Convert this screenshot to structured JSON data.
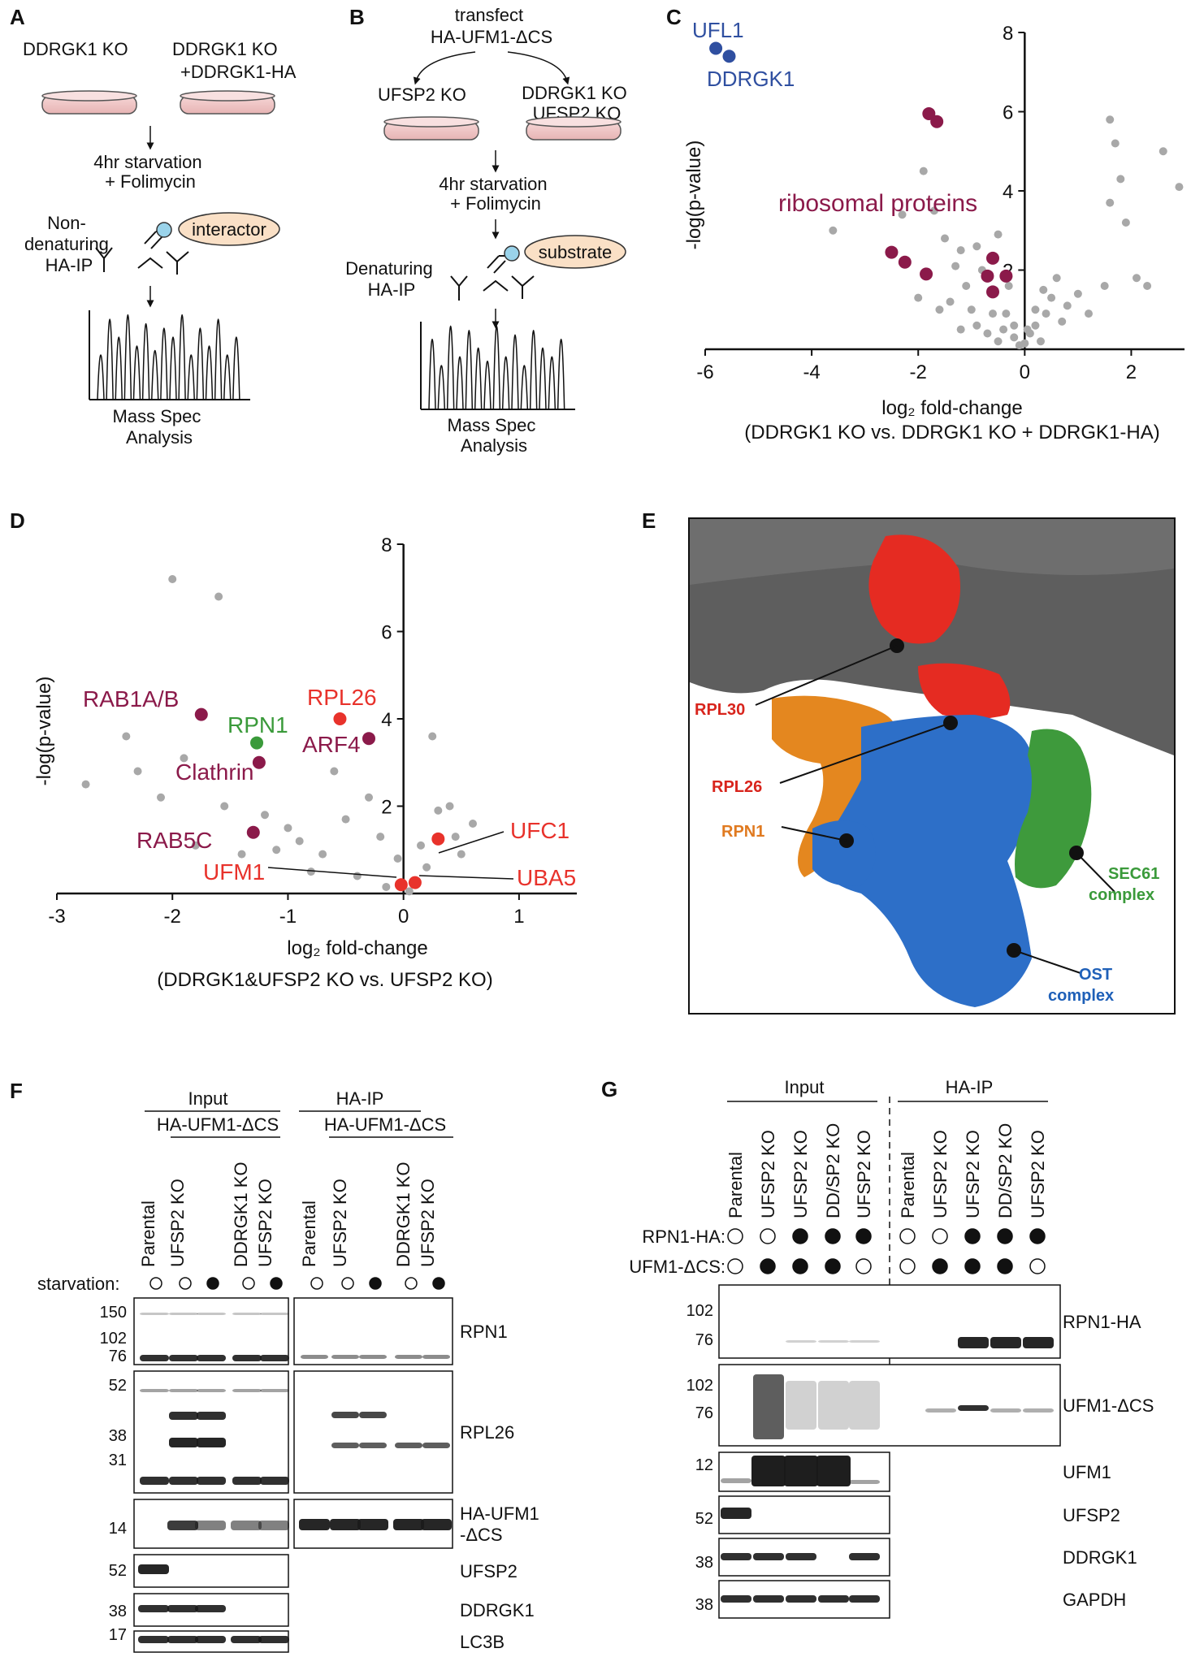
{
  "panels": {
    "A": "A",
    "B": "B",
    "C": "C",
    "D": "D",
    "E": "E",
    "F": "F",
    "G": "G"
  },
  "panelA": {
    "left_label": "DDRGK1 KO",
    "right_label": "DDRGK1 KO\n+DDRGK1-HA",
    "step1": "4hr starvation\n+ Folimycin",
    "ip_label": "Non-\ndenaturing\nHA-IP",
    "bubble": "interactor",
    "ms": "Mass Spec\nAnalysis"
  },
  "panelB": {
    "top": "transfect\nHA-UFM1-ΔCS",
    "left_label": "UFSP2 KO",
    "right_label": "DDRGK1 KO\nUFSP2 KO",
    "step1": "4hr starvation\n+ Folimycin",
    "ip_label": "Denaturing\nHA-IP",
    "bubble": "substrate",
    "ms": "Mass Spec\nAnalysis"
  },
  "chart_data": [
    {
      "type": "scatter",
      "panel": "C",
      "xlabel": "log₂ fold-change",
      "xlabel_sub": "(DDRGK1 KO vs. DDRGK1 KO + DDRGK1-HA)",
      "ylabel": "-log(p-value)",
      "xlim": [
        -6,
        3
      ],
      "ylim": [
        0,
        8
      ],
      "xticks": [
        "-6",
        "-4",
        "-2",
        "0",
        "2"
      ],
      "yticks": [
        "2",
        "4",
        "6",
        "8"
      ],
      "annotations": {
        "ufl1": "UFL1",
        "ddrgk1": "DDRGK1",
        "ribo": "ribosomal proteins"
      },
      "highlight_blue": [
        [
          -5.8,
          7.6
        ],
        [
          -5.55,
          7.4
        ]
      ],
      "highlight_ribo": [
        [
          -1.8,
          5.95
        ],
        [
          -1.65,
          5.75
        ],
        [
          -2.5,
          2.45
        ],
        [
          -2.25,
          2.2
        ],
        [
          -1.85,
          1.9
        ],
        [
          -0.6,
          2.3
        ],
        [
          -0.7,
          1.85
        ],
        [
          -0.6,
          1.45
        ],
        [
          -0.35,
          1.85
        ]
      ],
      "background": [
        [
          -3.6,
          3.0
        ],
        [
          -2.3,
          3.4
        ],
        [
          -1.9,
          4.5
        ],
        [
          -1.7,
          3.5
        ],
        [
          -1.5,
          2.8
        ],
        [
          -1.3,
          2.1
        ],
        [
          -1.1,
          1.6
        ],
        [
          -1.2,
          2.5
        ],
        [
          -0.9,
          2.6
        ],
        [
          -0.8,
          2.0
        ],
        [
          -0.5,
          2.9
        ],
        [
          -0.3,
          1.6
        ],
        [
          -1.4,
          1.2
        ],
        [
          -1.6,
          1.0
        ],
        [
          -2.0,
          1.3
        ],
        [
          -1.0,
          1.0
        ],
        [
          -0.9,
          0.6
        ],
        [
          -0.6,
          0.9
        ],
        [
          -0.4,
          0.5
        ],
        [
          -0.2,
          0.3
        ],
        [
          -0.1,
          0.1
        ],
        [
          0.0,
          0.15
        ],
        [
          0.1,
          0.4
        ],
        [
          0.2,
          0.6
        ],
        [
          0.3,
          0.2
        ],
        [
          0.4,
          0.9
        ],
        [
          0.5,
          1.3
        ],
        [
          0.6,
          1.8
        ],
        [
          0.7,
          0.7
        ],
        [
          0.8,
          1.1
        ],
        [
          1.0,
          1.4
        ],
        [
          1.2,
          0.9
        ],
        [
          1.5,
          1.6
        ],
        [
          1.6,
          3.7
        ],
        [
          1.7,
          5.2
        ],
        [
          1.8,
          4.3
        ],
        [
          1.9,
          3.2
        ],
        [
          2.1,
          1.8
        ],
        [
          2.3,
          1.6
        ],
        [
          2.6,
          5.0
        ],
        [
          2.9,
          4.1
        ],
        [
          1.6,
          5.8
        ],
        [
          -0.2,
          0.6
        ],
        [
          -0.5,
          0.2
        ],
        [
          -0.7,
          0.4
        ],
        [
          0.2,
          1.0
        ],
        [
          0.35,
          1.5
        ],
        [
          -1.2,
          0.5
        ],
        [
          -0.35,
          0.9
        ],
        [
          0.05,
          0.5
        ]
      ]
    },
    {
      "type": "scatter",
      "panel": "D",
      "xlabel": "log₂ fold-change",
      "xlabel_sub": "(DDRGK1&UFSP2 KO vs. UFSP2 KO)",
      "ylabel": "-log(p-value)",
      "xlim": [
        -3,
        1.5
      ],
      "ylim": [
        0,
        8
      ],
      "xticks": [
        "-3",
        "-2",
        "-1",
        "0",
        "1"
      ],
      "yticks": [
        "2",
        "4",
        "6",
        "8"
      ],
      "labels": {
        "rab1": "RAB1A/B",
        "rpn1": "RPN1",
        "clathrin": "Clathrin",
        "rpl26": "RPL26",
        "arf4": "ARF4",
        "rab5c": "RAB5C",
        "ufm1": "UFM1",
        "ufc1": "UFC1",
        "uba5": "UBA5"
      },
      "purple_points": [
        [
          -1.75,
          4.1
        ],
        [
          -1.25,
          3.0
        ],
        [
          -0.3,
          3.55
        ],
        [
          -1.3,
          1.4
        ]
      ],
      "green_points": [
        [
          -1.27,
          3.45
        ]
      ],
      "red_points": [
        [
          -0.55,
          4.0
        ],
        [
          -0.02,
          0.2
        ],
        [
          0.1,
          0.25
        ],
        [
          0.3,
          1.25
        ]
      ],
      "background": [
        [
          -2.0,
          7.2
        ],
        [
          -1.6,
          6.8
        ],
        [
          -2.75,
          2.5
        ],
        [
          -2.3,
          2.8
        ],
        [
          -2.4,
          3.6
        ],
        [
          -2.1,
          2.2
        ],
        [
          -1.9,
          3.1
        ],
        [
          -1.55,
          2.0
        ],
        [
          -1.2,
          1.8
        ],
        [
          -1.0,
          1.5
        ],
        [
          -0.9,
          1.2
        ],
        [
          -0.7,
          0.9
        ],
        [
          -0.5,
          1.7
        ],
        [
          -0.3,
          2.2
        ],
        [
          -0.2,
          1.3
        ],
        [
          -0.6,
          2.8
        ],
        [
          0.25,
          3.6
        ],
        [
          0.4,
          2.0
        ],
        [
          0.5,
          0.9
        ],
        [
          0.6,
          1.6
        ],
        [
          0.2,
          0.6
        ],
        [
          -0.4,
          0.4
        ],
        [
          -0.15,
          0.15
        ],
        [
          0.05,
          0.05
        ],
        [
          -1.4,
          0.9
        ],
        [
          -1.8,
          1.1
        ],
        [
          -0.8,
          0.5
        ],
        [
          0.3,
          1.9
        ],
        [
          0.15,
          1.1
        ],
        [
          -0.05,
          0.8
        ],
        [
          -1.1,
          1.0
        ],
        [
          0.45,
          1.3
        ]
      ]
    }
  ],
  "panelE": {
    "rpl30": "RPL30",
    "rpl26": "RPL26",
    "rpn1": "RPN1",
    "sec61": "SEC61\ncomplex",
    "ost": "OST\ncomplex"
  },
  "panelF": {
    "input": "Input",
    "haip": "HA-IP",
    "construct": "HA-UFM1-ΔCS",
    "lanes": [
      "Parental",
      "UFSP2 KO",
      "DDRGK1 KO\nUFSP2 KO"
    ],
    "starvation": "starvation:",
    "blots": [
      {
        "name": "RPN1",
        "markers": [
          "150",
          "102",
          "76"
        ]
      },
      {
        "name": "RPL26",
        "markers": [
          "52",
          "38",
          "31"
        ]
      },
      {
        "name": "HA-UFM1\n-ΔCS",
        "markers": [
          "14"
        ]
      },
      {
        "name": "UFSP2",
        "markers": [
          "52"
        ]
      },
      {
        "name": "DDRGK1",
        "markers": [
          "38"
        ]
      },
      {
        "name": "LC3B",
        "markers": [
          "17"
        ]
      }
    ]
  },
  "panelG": {
    "input": "Input",
    "haip": "HA-IP",
    "lanes": [
      "Parental",
      "UFSP2 KO",
      "UFSP2 KO",
      "DD/SP2 KO",
      "UFSP2 KO"
    ],
    "row1_label": "RPN1-HA:",
    "row2_label": "UFM1-ΔCS:",
    "row1": [
      0,
      0,
      1,
      1,
      1
    ],
    "row2": [
      0,
      1,
      1,
      1,
      0
    ],
    "blots": [
      {
        "name": "RPN1-HA",
        "markers": [
          "102",
          "76"
        ]
      },
      {
        "name": "UFM1-ΔCS",
        "markers": [
          "102",
          "76"
        ]
      },
      {
        "name": "UFM1",
        "markers": [
          "12"
        ]
      },
      {
        "name": "UFSP2",
        "markers": [
          "52"
        ]
      },
      {
        "name": "DDRGK1",
        "markers": [
          "38"
        ]
      },
      {
        "name": "GAPDH",
        "markers": [
          "38"
        ]
      }
    ]
  },
  "colors": {
    "blue": "#2f4fa0",
    "ribo": "#8b1a4a",
    "red": "#e8322b",
    "green": "#3a9a3a",
    "orange": "#e07a20",
    "grey": "#a8a8a8"
  }
}
